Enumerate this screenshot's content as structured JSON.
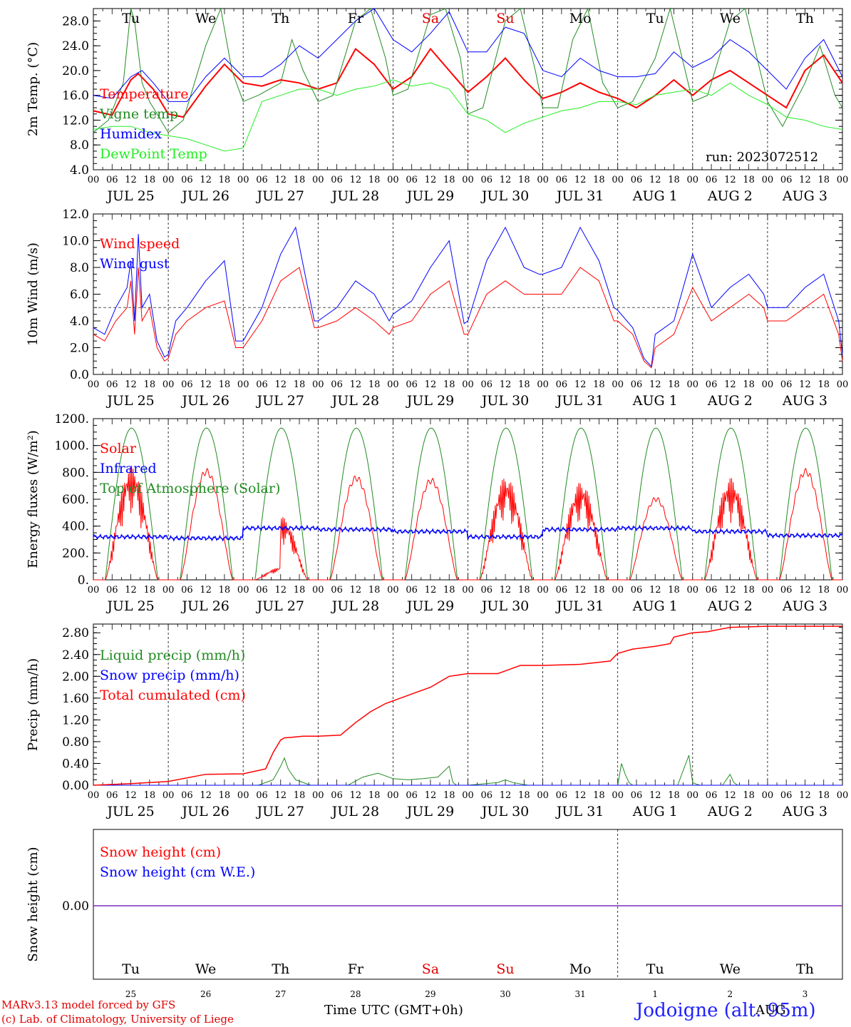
{
  "run_label": "run: 2023072512",
  "footer": {
    "model": "MARv3.13 model forced by GFS",
    "lab": "(c) Lab. of Climatology, University of Liege",
    "xlabel": "Time UTC (GMT+0h)",
    "station": "Jodoigne (alt. 95m)",
    "month_label": "AUG"
  },
  "x_axis": {
    "hour_ticks": [
      "00",
      "06",
      "12",
      "18"
    ],
    "date_labels": [
      "JUL 25",
      "JUL 26",
      "JUL 27",
      "JUL 28",
      "JUL 29",
      "JUL 30",
      "JUL 31",
      "AUG  1",
      "AUG  2",
      "AUG  3"
    ],
    "weekdays": [
      "Tu",
      "We",
      "Th",
      "Fr",
      "Sa",
      "Su",
      "Mo",
      "Tu",
      "We",
      "Th"
    ],
    "weekday_colors": [
      "#000000",
      "#000000",
      "#000000",
      "#000000",
      "#e00000",
      "#e00000",
      "#000000",
      "#000000",
      "#000000",
      "#000000"
    ],
    "day_numbers": [
      "25",
      "26",
      "27",
      "28",
      "29",
      "30",
      "31",
      "1",
      "2",
      "3"
    ]
  },
  "colors": {
    "red": "#ff0000",
    "darkgreen": "#228b22",
    "blue": "#0000ff",
    "lightgreen": "#22ee22",
    "purple": "#7b2fbf"
  },
  "chart_data": [
    {
      "type": "line",
      "ylabel": "2m Temp. (°C)",
      "ylim": [
        4,
        30
      ],
      "yticks": [
        4,
        8,
        12,
        16,
        20,
        24,
        28
      ],
      "ytick_labels": [
        "4.0",
        "8.0",
        "12.0",
        "16.0",
        "20.0",
        "24.0",
        "28.0"
      ],
      "x_unit": "days since Jul 25 00 UTC",
      "series": [
        {
          "name": "Temperature",
          "color": "#ff0000",
          "width": 2,
          "x": [
            0,
            0.25,
            0.5,
            0.6,
            0.8,
            1.0,
            1.2,
            1.5,
            1.75,
            2.0,
            2.25,
            2.5,
            2.75,
            3.0,
            3.25,
            3.5,
            3.75,
            4.0,
            4.25,
            4.5,
            4.75,
            5.0,
            5.25,
            5.5,
            5.75,
            6.0,
            6.25,
            6.5,
            6.75,
            7.0,
            7.25,
            7.5,
            7.75,
            8.0,
            8.25,
            8.5,
            8.75,
            9.0,
            9.25,
            9.5,
            9.75,
            10.0
          ],
          "y": [
            13.5,
            12.8,
            18.5,
            19.5,
            17.0,
            13.0,
            12.5,
            17.5,
            21.0,
            18.0,
            17.5,
            18.5,
            18.0,
            17.0,
            18.0,
            23.5,
            21.0,
            17.0,
            19.0,
            23.5,
            20.0,
            16.5,
            19.0,
            22.0,
            18.5,
            15.5,
            16.5,
            18.0,
            16.5,
            15.5,
            14.0,
            16.0,
            18.5,
            16.0,
            18.5,
            20.0,
            18.0,
            16.0,
            14.0,
            20.0,
            22.5,
            18.0
          ]
        },
        {
          "name": "Vigne temp",
          "color": "#228b22",
          "width": 1,
          "x": [
            0,
            0.2,
            0.4,
            0.5,
            0.55,
            0.65,
            0.75,
            1.0,
            1.2,
            1.5,
            1.7,
            1.85,
            2.0,
            2.2,
            2.5,
            2.65,
            2.8,
            3.0,
            3.2,
            3.5,
            3.7,
            3.9,
            4.0,
            4.2,
            4.5,
            4.7,
            4.9,
            5.0,
            5.2,
            5.5,
            5.7,
            5.9,
            6.0,
            6.2,
            6.4,
            6.6,
            6.8,
            7.0,
            7.2,
            7.5,
            7.7,
            7.9,
            8.0,
            8.2,
            8.5,
            8.7,
            8.9,
            9.0,
            9.2,
            9.5,
            9.7,
            9.9,
            10.0
          ],
          "y": [
            10,
            12,
            18,
            30,
            28,
            18,
            15,
            10,
            12,
            24,
            30,
            20,
            15,
            16,
            18,
            25,
            20,
            15,
            16,
            28,
            30,
            22,
            16,
            17,
            29,
            30,
            22,
            13,
            14,
            28,
            30,
            20,
            14,
            14,
            25,
            30,
            18,
            14,
            15,
            22,
            30,
            20,
            15,
            16,
            28,
            30,
            20,
            15,
            11,
            18,
            24,
            16,
            14
          ]
        },
        {
          "name": "Humidex",
          "color": "#0000ff",
          "width": 1,
          "x": [
            0,
            0.25,
            0.5,
            0.65,
            0.8,
            1.0,
            1.25,
            1.5,
            1.75,
            2.0,
            2.25,
            2.5,
            2.75,
            3.0,
            3.25,
            3.5,
            3.75,
            4.0,
            4.25,
            4.5,
            4.75,
            5.0,
            5.25,
            5.5,
            5.75,
            6.0,
            6.25,
            6.5,
            6.75,
            7.0,
            7.25,
            7.5,
            7.75,
            8.0,
            8.25,
            8.5,
            8.75,
            9.0,
            9.25,
            9.5,
            9.75,
            10.0
          ],
          "y": [
            16,
            15.5,
            19,
            20,
            18,
            15,
            15,
            19,
            22,
            19,
            19,
            21,
            24,
            22,
            25,
            28,
            30,
            25,
            23,
            26,
            29.5,
            23,
            23,
            27,
            26,
            20,
            19,
            22,
            20,
            19,
            19,
            19.5,
            23,
            20.5,
            22,
            25,
            23,
            20,
            17,
            22,
            25,
            19
          ]
        },
        {
          "name": "DewPoint Temp",
          "color": "#22ee22",
          "width": 1,
          "x": [
            0,
            0.25,
            0.5,
            0.75,
            1.0,
            1.25,
            1.5,
            1.75,
            2.0,
            2.25,
            2.5,
            2.75,
            3.0,
            3.25,
            3.5,
            3.75,
            4.0,
            4.25,
            4.5,
            4.75,
            5.0,
            5.25,
            5.5,
            5.75,
            6.0,
            6.25,
            6.5,
            6.75,
            7.0,
            7.25,
            7.5,
            7.75,
            8.0,
            8.25,
            8.5,
            8.75,
            9.0,
            9.25,
            9.5,
            9.75,
            10.0
          ],
          "y": [
            10.5,
            11,
            11,
            10,
            9.5,
            9,
            8,
            7,
            7.5,
            15,
            16,
            17,
            17,
            16,
            17,
            17.5,
            18.5,
            17.5,
            18,
            17,
            13,
            12,
            10,
            11.5,
            12.5,
            13.5,
            14,
            15,
            15,
            14.5,
            16,
            16.5,
            17,
            16,
            18,
            16,
            14.5,
            12.5,
            12,
            11,
            10.5
          ]
        }
      ],
      "legend": [
        {
          "label": "Temperature",
          "color": "#ff0000"
        },
        {
          "label": "Vigne temp",
          "color": "#228b22"
        },
        {
          "label": "Humidex",
          "color": "#0000ff"
        },
        {
          "label": "DewPoint Temp",
          "color": "#22ee22"
        }
      ]
    },
    {
      "type": "line",
      "ylabel": "10m Wind (m/s)",
      "ylim": [
        0,
        12
      ],
      "yticks": [
        0,
        2,
        4,
        6,
        8,
        10,
        12
      ],
      "ytick_labels": [
        "0.0",
        "2.0",
        "4.0",
        "6.0",
        "8.0",
        "10.0",
        "12.0"
      ],
      "hline": 5,
      "series": [
        {
          "name": "Wind speed",
          "color": "#ff0000",
          "width": 1,
          "x": [
            0,
            0.15,
            0.3,
            0.45,
            0.5,
            0.55,
            0.6,
            0.65,
            0.75,
            0.85,
            0.95,
            1.0,
            1.1,
            1.25,
            1.5,
            1.75,
            1.9,
            2.0,
            2.25,
            2.5,
            2.75,
            2.95,
            3.0,
            3.25,
            3.5,
            3.75,
            3.95,
            4.0,
            4.25,
            4.5,
            4.75,
            4.95,
            5.0,
            5.25,
            5.5,
            5.75,
            5.95,
            6.0,
            6.25,
            6.5,
            6.75,
            6.95,
            7.0,
            7.2,
            7.35,
            7.45,
            7.5,
            7.75,
            8.0,
            8.25,
            8.5,
            8.75,
            8.95,
            9.0,
            9.25,
            9.5,
            9.75,
            9.95,
            10.0
          ],
          "y": [
            3,
            2.5,
            4,
            5,
            7,
            3,
            8,
            4,
            5,
            2,
            1,
            1.2,
            3,
            4,
            5,
            5.5,
            2,
            2,
            4,
            7,
            8,
            3.5,
            3.5,
            4,
            5,
            4,
            3,
            3.5,
            4,
            6,
            7,
            3,
            3,
            6,
            7,
            6,
            6,
            6,
            6,
            8,
            7,
            4,
            4,
            3,
            1,
            0.5,
            2,
            3,
            6.5,
            4,
            5,
            6,
            5,
            4,
            4,
            5,
            6,
            3,
            1
          ]
        },
        {
          "name": "Wind gust",
          "color": "#0000ff",
          "width": 1,
          "x": [
            0,
            0.15,
            0.3,
            0.45,
            0.5,
            0.55,
            0.6,
            0.65,
            0.75,
            0.85,
            0.95,
            1.0,
            1.1,
            1.25,
            1.5,
            1.75,
            1.9,
            2.0,
            2.25,
            2.5,
            2.7,
            2.95,
            3.0,
            3.25,
            3.5,
            3.75,
            3.95,
            4.0,
            4.25,
            4.5,
            4.75,
            4.95,
            5.0,
            5.25,
            5.5,
            5.75,
            5.95,
            6.0,
            6.25,
            6.5,
            6.75,
            6.95,
            7.0,
            7.2,
            7.35,
            7.45,
            7.5,
            7.75,
            8.0,
            8.25,
            8.5,
            8.75,
            8.95,
            9.0,
            9.25,
            9.5,
            9.75,
            9.95,
            10.0
          ],
          "y": [
            3.5,
            3,
            5,
            6.5,
            8.5,
            4,
            10.5,
            5,
            6,
            2.5,
            1.3,
            1.5,
            4,
            5,
            7,
            8.5,
            2.5,
            2.5,
            5,
            9,
            11,
            4,
            4,
            5,
            7,
            6,
            4,
            4.5,
            5.5,
            8,
            10,
            3.8,
            4,
            8.5,
            11,
            8,
            7.5,
            7.5,
            8,
            11,
            8.5,
            5,
            4.8,
            3.5,
            1.2,
            0.6,
            3,
            4,
            9,
            5,
            6.5,
            7.5,
            6,
            5,
            5,
            6.5,
            7.5,
            4,
            1.5
          ]
        }
      ],
      "legend": [
        {
          "label": "Wind speed",
          "color": "#ff0000"
        },
        {
          "label": "Wind gust",
          "color": "#0000ff"
        }
      ]
    },
    {
      "type": "line",
      "ylabel": "Energy fluxes (W/m²)",
      "ylim": [
        0,
        1200
      ],
      "yticks": [
        0,
        200,
        400,
        600,
        800,
        1000,
        1200
      ],
      "ytick_labels": [
        "0.",
        "200.",
        "400.",
        "600.",
        "800.",
        "1000.",
        "1200."
      ],
      "toa_peak": 1130,
      "solar_peaks": [
        850,
        830,
        470,
        780,
        760,
        770,
        730,
        620,
        760,
        830
      ],
      "infrared_level": [
        320,
        310,
        385,
        375,
        360,
        320,
        375,
        385,
        360,
        330
      ],
      "series": [
        {
          "name": "Solar",
          "color": "#ff0000"
        },
        {
          "name": "Infrared",
          "color": "#0000ff"
        },
        {
          "name": "Top of Atmosphere (Solar)",
          "color": "#228b22"
        }
      ],
      "legend": [
        {
          "label": "Solar",
          "color": "#ff0000"
        },
        {
          "label": "Infrared",
          "color": "#0000ff"
        },
        {
          "label": "Top of Atmosphere (Solar)",
          "color": "#228b22"
        }
      ]
    },
    {
      "type": "line",
      "ylabel": "Precip (mm/h)",
      "ylim": [
        0,
        2.96
      ],
      "yticks": [
        0,
        0.4,
        0.8,
        1.2,
        1.6,
        2.0,
        2.4,
        2.8
      ],
      "ytick_labels": [
        "0.00",
        "0.40",
        "0.80",
        "1.20",
        "1.60",
        "2.00",
        "2.40",
        "2.80"
      ],
      "series": [
        {
          "name": "Liquid precip (mm/h)",
          "color": "#228b22",
          "width": 1,
          "x": [
            0,
            2.2,
            2.4,
            2.5,
            2.55,
            2.6,
            2.7,
            2.9,
            3.4,
            3.6,
            3.8,
            4.0,
            4.2,
            4.4,
            4.6,
            4.75,
            4.8,
            4.85,
            5.0,
            5.4,
            5.5,
            5.6,
            5.8,
            7.0,
            7.05,
            7.1,
            7.15,
            7.2,
            7.8,
            7.95,
            8.0,
            8.05,
            8.1,
            8.4,
            8.5,
            8.55,
            8.6,
            10.0
          ],
          "y": [
            0,
            0,
            0.1,
            0.35,
            0.5,
            0.3,
            0.1,
            0,
            0,
            0.15,
            0.22,
            0.12,
            0.1,
            0.12,
            0.15,
            0.35,
            0.05,
            0,
            0,
            0.05,
            0.1,
            0.05,
            0,
            0,
            0.4,
            0.2,
            0.05,
            0,
            0,
            0.55,
            0.05,
            0.02,
            0,
            0,
            0.2,
            0.05,
            0,
            0
          ]
        },
        {
          "name": "Snow precip (mm/h)",
          "color": "#0000ff",
          "width": 1,
          "x": [
            0,
            10
          ],
          "y": [
            0,
            0
          ]
        },
        {
          "name": "Total cumulated (cm)",
          "color": "#ff0000",
          "width": 1.5,
          "x": [
            0,
            0.5,
            1.0,
            1.5,
            2.0,
            2.3,
            2.4,
            2.5,
            2.55,
            2.65,
            2.8,
            3.0,
            3.3,
            3.5,
            3.7,
            3.9,
            4.0,
            4.3,
            4.5,
            4.75,
            5.0,
            5.4,
            5.5,
            5.7,
            6.0,
            6.5,
            6.9,
            7.0,
            7.2,
            7.5,
            7.7,
            7.75,
            8.0,
            8.2,
            8.5,
            9.0,
            10.0
          ],
          "y": [
            0,
            0.03,
            0.07,
            0.2,
            0.21,
            0.3,
            0.6,
            0.83,
            0.87,
            0.88,
            0.9,
            0.9,
            0.92,
            1.15,
            1.35,
            1.5,
            1.55,
            1.7,
            1.8,
            2.0,
            2.05,
            2.05,
            2.1,
            2.2,
            2.2,
            2.22,
            2.28,
            2.42,
            2.5,
            2.55,
            2.6,
            2.72,
            2.8,
            2.82,
            2.9,
            2.92,
            2.92
          ]
        }
      ],
      "legend": [
        {
          "label": "Liquid precip (mm/h)",
          "color": "#228b22"
        },
        {
          "label": "Snow precip (mm/h)",
          "color": "#0000ff"
        },
        {
          "label": "Total cumulated (cm)",
          "color": "#ff0000"
        }
      ]
    },
    {
      "type": "line",
      "ylabel": "Snow height (cm)",
      "ytick_labels": [
        "0.00"
      ],
      "series": [
        {
          "name": "Snow height (cm)",
          "color": "#ff0000",
          "x": [
            0,
            10
          ],
          "y": [
            0,
            0
          ]
        },
        {
          "name": "Snow height (cm W.E.)",
          "color": "#0000ff",
          "x": [
            0,
            10
          ],
          "y": [
            0,
            0
          ]
        }
      ],
      "legend": [
        {
          "label": "Snow height (cm)",
          "color": "#ff0000"
        },
        {
          "label": "Snow height (cm W.E.)",
          "color": "#0000ff"
        }
      ]
    }
  ]
}
